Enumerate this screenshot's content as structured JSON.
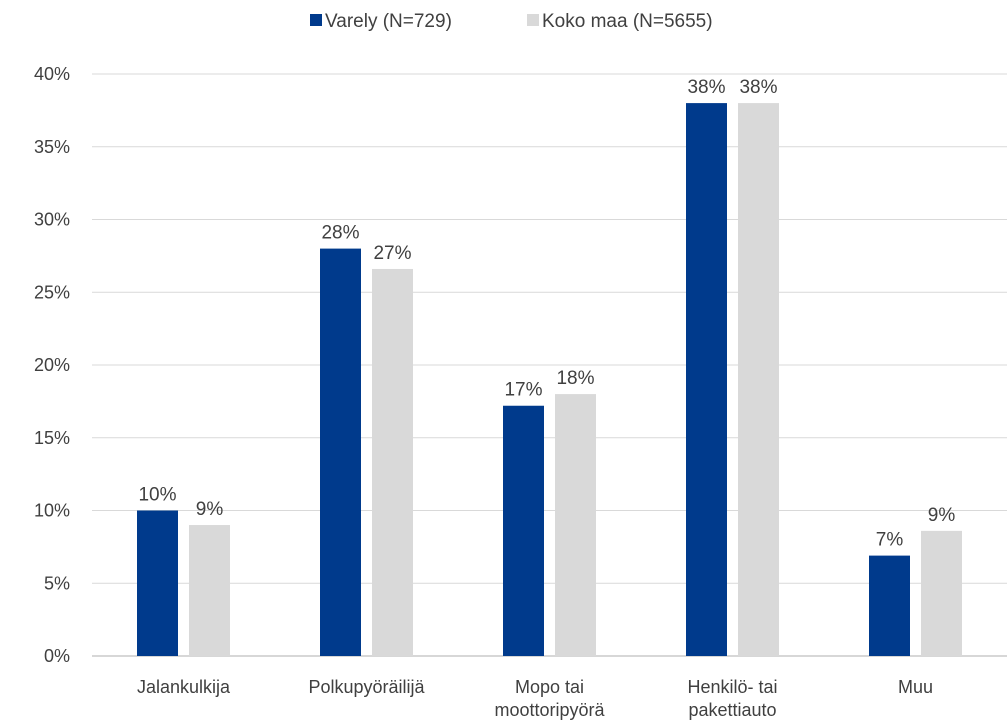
{
  "chart_data": {
    "type": "bar",
    "categories": [
      [
        "Jalankulkija"
      ],
      [
        "Polkupyöräilijä"
      ],
      [
        "Mopo tai",
        "moottoripyörä"
      ],
      [
        "Henkilö- tai",
        "pakettiauto"
      ],
      [
        "Muu"
      ]
    ],
    "series": [
      {
        "name": "Varely (N=729)",
        "color": "#003a8c",
        "values": [
          10,
          28,
          17.2,
          38,
          6.9
        ],
        "labels": [
          "10%",
          "28%",
          "17%",
          "38%",
          "7%"
        ]
      },
      {
        "name": "Koko maa (N=5655)",
        "color": "#d9d9d9",
        "values": [
          9,
          26.6,
          18,
          38,
          8.6
        ],
        "labels": [
          "9%",
          "27%",
          "18%",
          "38%",
          "9%"
        ]
      }
    ],
    "yticks": [
      "0%",
      "5%",
      "10%",
      "15%",
      "20%",
      "25%",
      "30%",
      "35%",
      "40%"
    ],
    "ylim": [
      0,
      40
    ],
    "grid": true,
    "legend": "top-center"
  }
}
